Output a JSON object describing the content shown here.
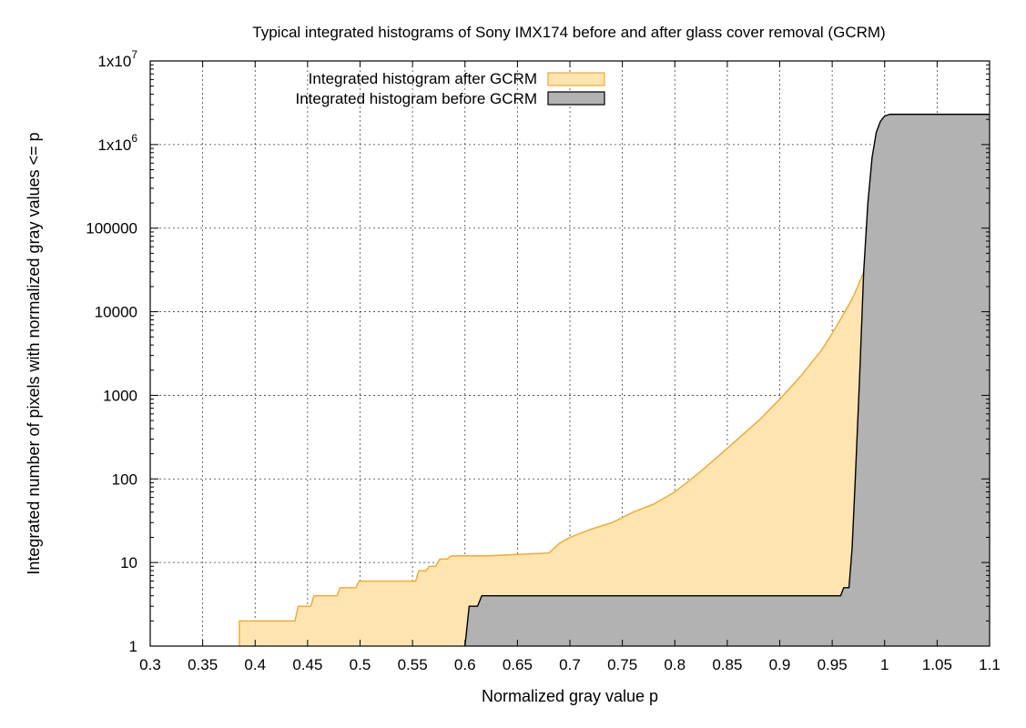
{
  "chart_data": {
    "type": "area",
    "title": "Typical integrated histograms of Sony IMX174 before and after glass cover removal (GCRM)",
    "xlabel": "Normalized gray value p",
    "ylabel": "Integrated number of pixels with normalized gray values <= p",
    "xlim": [
      0.3,
      1.1
    ],
    "ylim": [
      1,
      10000000
    ],
    "yscale": "log",
    "grid": true,
    "legend_position": "top-left",
    "x_ticks": [
      "0.3",
      "0.35",
      "0.4",
      "0.45",
      "0.5",
      "0.55",
      "0.6",
      "0.65",
      "0.7",
      "0.75",
      "0.8",
      "0.85",
      "0.9",
      "0.95",
      "1",
      "1.05",
      "1.1"
    ],
    "y_ticks": [
      {
        "base": "1",
        "exp": ""
      },
      {
        "base": "10",
        "exp": ""
      },
      {
        "base": "100",
        "exp": ""
      },
      {
        "base": "1000",
        "exp": ""
      },
      {
        "base": "10000",
        "exp": ""
      },
      {
        "base": "100000",
        "exp": ""
      },
      {
        "base": "1x10",
        "exp": "6"
      },
      {
        "base": "1x10",
        "exp": "7"
      }
    ],
    "series": [
      {
        "name": "Integrated histogram after GCRM",
        "color": "#f0a830",
        "fill": "#fde4b0",
        "x": [
          0.385,
          0.385,
          0.388,
          0.438,
          0.441,
          0.453,
          0.456,
          0.478,
          0.481,
          0.496,
          0.499,
          0.517,
          0.52,
          0.553,
          0.556,
          0.563,
          0.566,
          0.572,
          0.576,
          0.583,
          0.587,
          0.6,
          0.62,
          0.68,
          0.69,
          0.7,
          0.72,
          0.74,
          0.76,
          0.78,
          0.8,
          0.82,
          0.84,
          0.86,
          0.88,
          0.9,
          0.92,
          0.94,
          0.95,
          0.96,
          0.97,
          0.975,
          0.98,
          0.984
        ],
        "y": [
          1,
          2,
          2,
          2,
          3,
          3,
          4,
          4,
          5,
          5,
          6,
          6,
          6,
          6,
          8,
          8,
          9,
          9,
          11,
          11,
          12,
          12,
          12,
          13,
          17,
          20,
          25,
          30,
          40,
          50,
          70,
          110,
          180,
          300,
          500,
          900,
          1700,
          3500,
          5500,
          9000,
          15000,
          21000,
          30000,
          40000
        ]
      },
      {
        "name": "Integrated histogram before GCRM",
        "color": "#000000",
        "fill": "#b2b2b2",
        "x": [
          0.6,
          0.604,
          0.609,
          0.612,
          0.616,
          0.65,
          0.9,
          0.958,
          0.961,
          0.966,
          0.969,
          0.972,
          0.976,
          0.98,
          0.984,
          0.988,
          0.992,
          0.996,
          1.0,
          1.005,
          1.01,
          1.1
        ],
        "y": [
          1,
          3,
          3,
          3,
          4,
          4,
          4,
          4,
          5,
          5,
          15,
          100,
          1500,
          30000,
          200000,
          700000,
          1400000,
          1900000,
          2200000,
          2300000,
          2300000,
          2300000
        ]
      }
    ]
  }
}
